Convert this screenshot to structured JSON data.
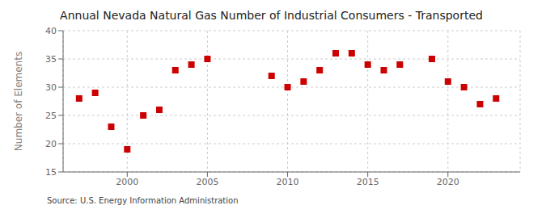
{
  "chart_data": {
    "type": "scatter",
    "title": "Annual Nevada Natural Gas Number of Industrial Consumers - Transported",
    "ylabel": "Number of Elements",
    "annotations": [
      "Source: U.S. Energy Information Administration"
    ],
    "x": [
      1997,
      1998,
      1999,
      2000,
      2001,
      2002,
      2003,
      2004,
      2005,
      2009,
      2010,
      2011,
      2012,
      2013,
      2014,
      2015,
      2016,
      2017,
      2019,
      2020,
      2021,
      2022,
      2023
    ],
    "values": [
      28,
      29,
      23,
      19,
      25,
      26,
      33,
      34,
      35,
      32,
      30,
      31,
      33,
      36,
      36,
      34,
      33,
      34,
      35,
      31,
      30,
      27,
      28
    ],
    "color": "#cc0000",
    "marker": "square",
    "xlim": [
      1996,
      2024.5
    ],
    "xticks": [
      2000,
      2005,
      2010,
      2015,
      2020
    ],
    "ylim": [
      15,
      40
    ],
    "yticks": [
      15,
      20,
      25,
      30,
      35,
      40
    ],
    "grid": true
  }
}
